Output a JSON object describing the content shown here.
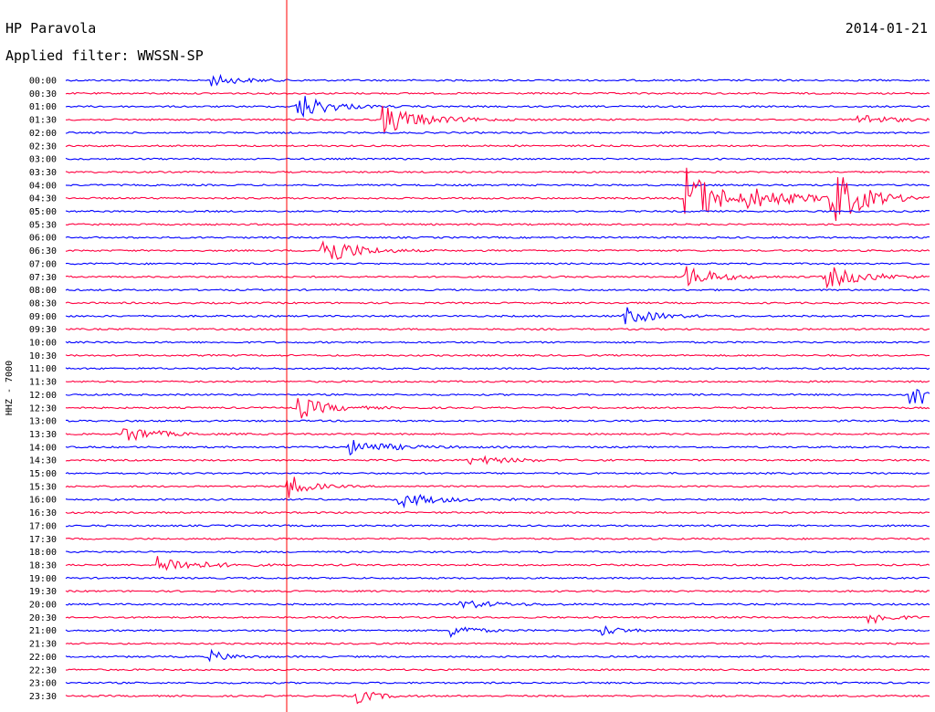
{
  "header": {
    "station": "HP Paravola",
    "date": "2014-01-21",
    "filter_label": "Applied filter: WWSSN-SP"
  },
  "chart_data": {
    "type": "line",
    "title": "HP Paravola",
    "subtitle": "Applied filter: WWSSN-SP",
    "ylabel": "HHZ - 7000",
    "xlabel": "",
    "grid": false,
    "legend": "none",
    "colors": [
      "#0000ff",
      "#ff0040"
    ],
    "marker_color": "#ff0000",
    "categories": [
      "00:00",
      "00:30",
      "01:00",
      "01:30",
      "02:00",
      "02:30",
      "03:00",
      "03:30",
      "04:00",
      "04:30",
      "05:00",
      "05:30",
      "06:00",
      "06:30",
      "07:00",
      "07:30",
      "08:00",
      "08:30",
      "09:00",
      "09:30",
      "10:00",
      "10:30",
      "11:00",
      "11:30",
      "12:00",
      "12:30",
      "13:00",
      "13:30",
      "14:00",
      "14:30",
      "15:00",
      "15:30",
      "16:00",
      "16:30",
      "17:00",
      "17:30",
      "18:00",
      "18:30",
      "19:00",
      "19:30",
      "20:00",
      "20:30",
      "21:00",
      "21:30",
      "22:00",
      "22:30",
      "23:00",
      "23:30"
    ],
    "events": [
      {
        "row": 0,
        "x": 0.17,
        "amp": 1.0,
        "dur": 0.03
      },
      {
        "row": 2,
        "x": 0.27,
        "amp": 2.5,
        "dur": 0.03
      },
      {
        "row": 3,
        "x": 0.37,
        "amp": 2.5,
        "dur": 0.04
      },
      {
        "row": 3,
        "x": 0.92,
        "amp": 1.0,
        "dur": 0.03
      },
      {
        "row": 9,
        "x": 0.72,
        "amp": 6.0,
        "dur": 0.03
      },
      {
        "row": 9,
        "x": 0.89,
        "amp": 5.0,
        "dur": 0.03
      },
      {
        "row": 9,
        "x": 0.79,
        "amp": 1.5,
        "dur": 0.06
      },
      {
        "row": 13,
        "x": 0.3,
        "amp": 3.0,
        "dur": 0.03
      },
      {
        "row": 15,
        "x": 0.72,
        "amp": 2.0,
        "dur": 0.03
      },
      {
        "row": 15,
        "x": 0.88,
        "amp": 2.0,
        "dur": 0.04
      },
      {
        "row": 18,
        "x": 0.65,
        "amp": 1.5,
        "dur": 0.03
      },
      {
        "row": 24,
        "x": 0.98,
        "amp": 3.0,
        "dur": 0.02
      },
      {
        "row": 25,
        "x": 0.27,
        "amp": 2.0,
        "dur": 0.03
      },
      {
        "row": 27,
        "x": 0.07,
        "amp": 1.5,
        "dur": 0.03
      },
      {
        "row": 28,
        "x": 0.33,
        "amp": 1.3,
        "dur": 0.04
      },
      {
        "row": 29,
        "x": 0.47,
        "amp": 0.8,
        "dur": 0.04
      },
      {
        "row": 31,
        "x": 0.26,
        "amp": 2.0,
        "dur": 0.02
      },
      {
        "row": 32,
        "x": 0.39,
        "amp": 1.2,
        "dur": 0.04
      },
      {
        "row": 37,
        "x": 0.11,
        "amp": 1.5,
        "dur": 0.04
      },
      {
        "row": 40,
        "x": 0.46,
        "amp": 0.7,
        "dur": 0.04
      },
      {
        "row": 41,
        "x": 0.93,
        "amp": 1.5,
        "dur": 0.02
      },
      {
        "row": 42,
        "x": 0.45,
        "amp": 1.2,
        "dur": 0.02
      },
      {
        "row": 42,
        "x": 0.62,
        "amp": 1.0,
        "dur": 0.02
      },
      {
        "row": 44,
        "x": 0.17,
        "amp": 1.0,
        "dur": 0.02
      },
      {
        "row": 47,
        "x": 0.34,
        "amp": 1.2,
        "dur": 0.02
      }
    ]
  }
}
